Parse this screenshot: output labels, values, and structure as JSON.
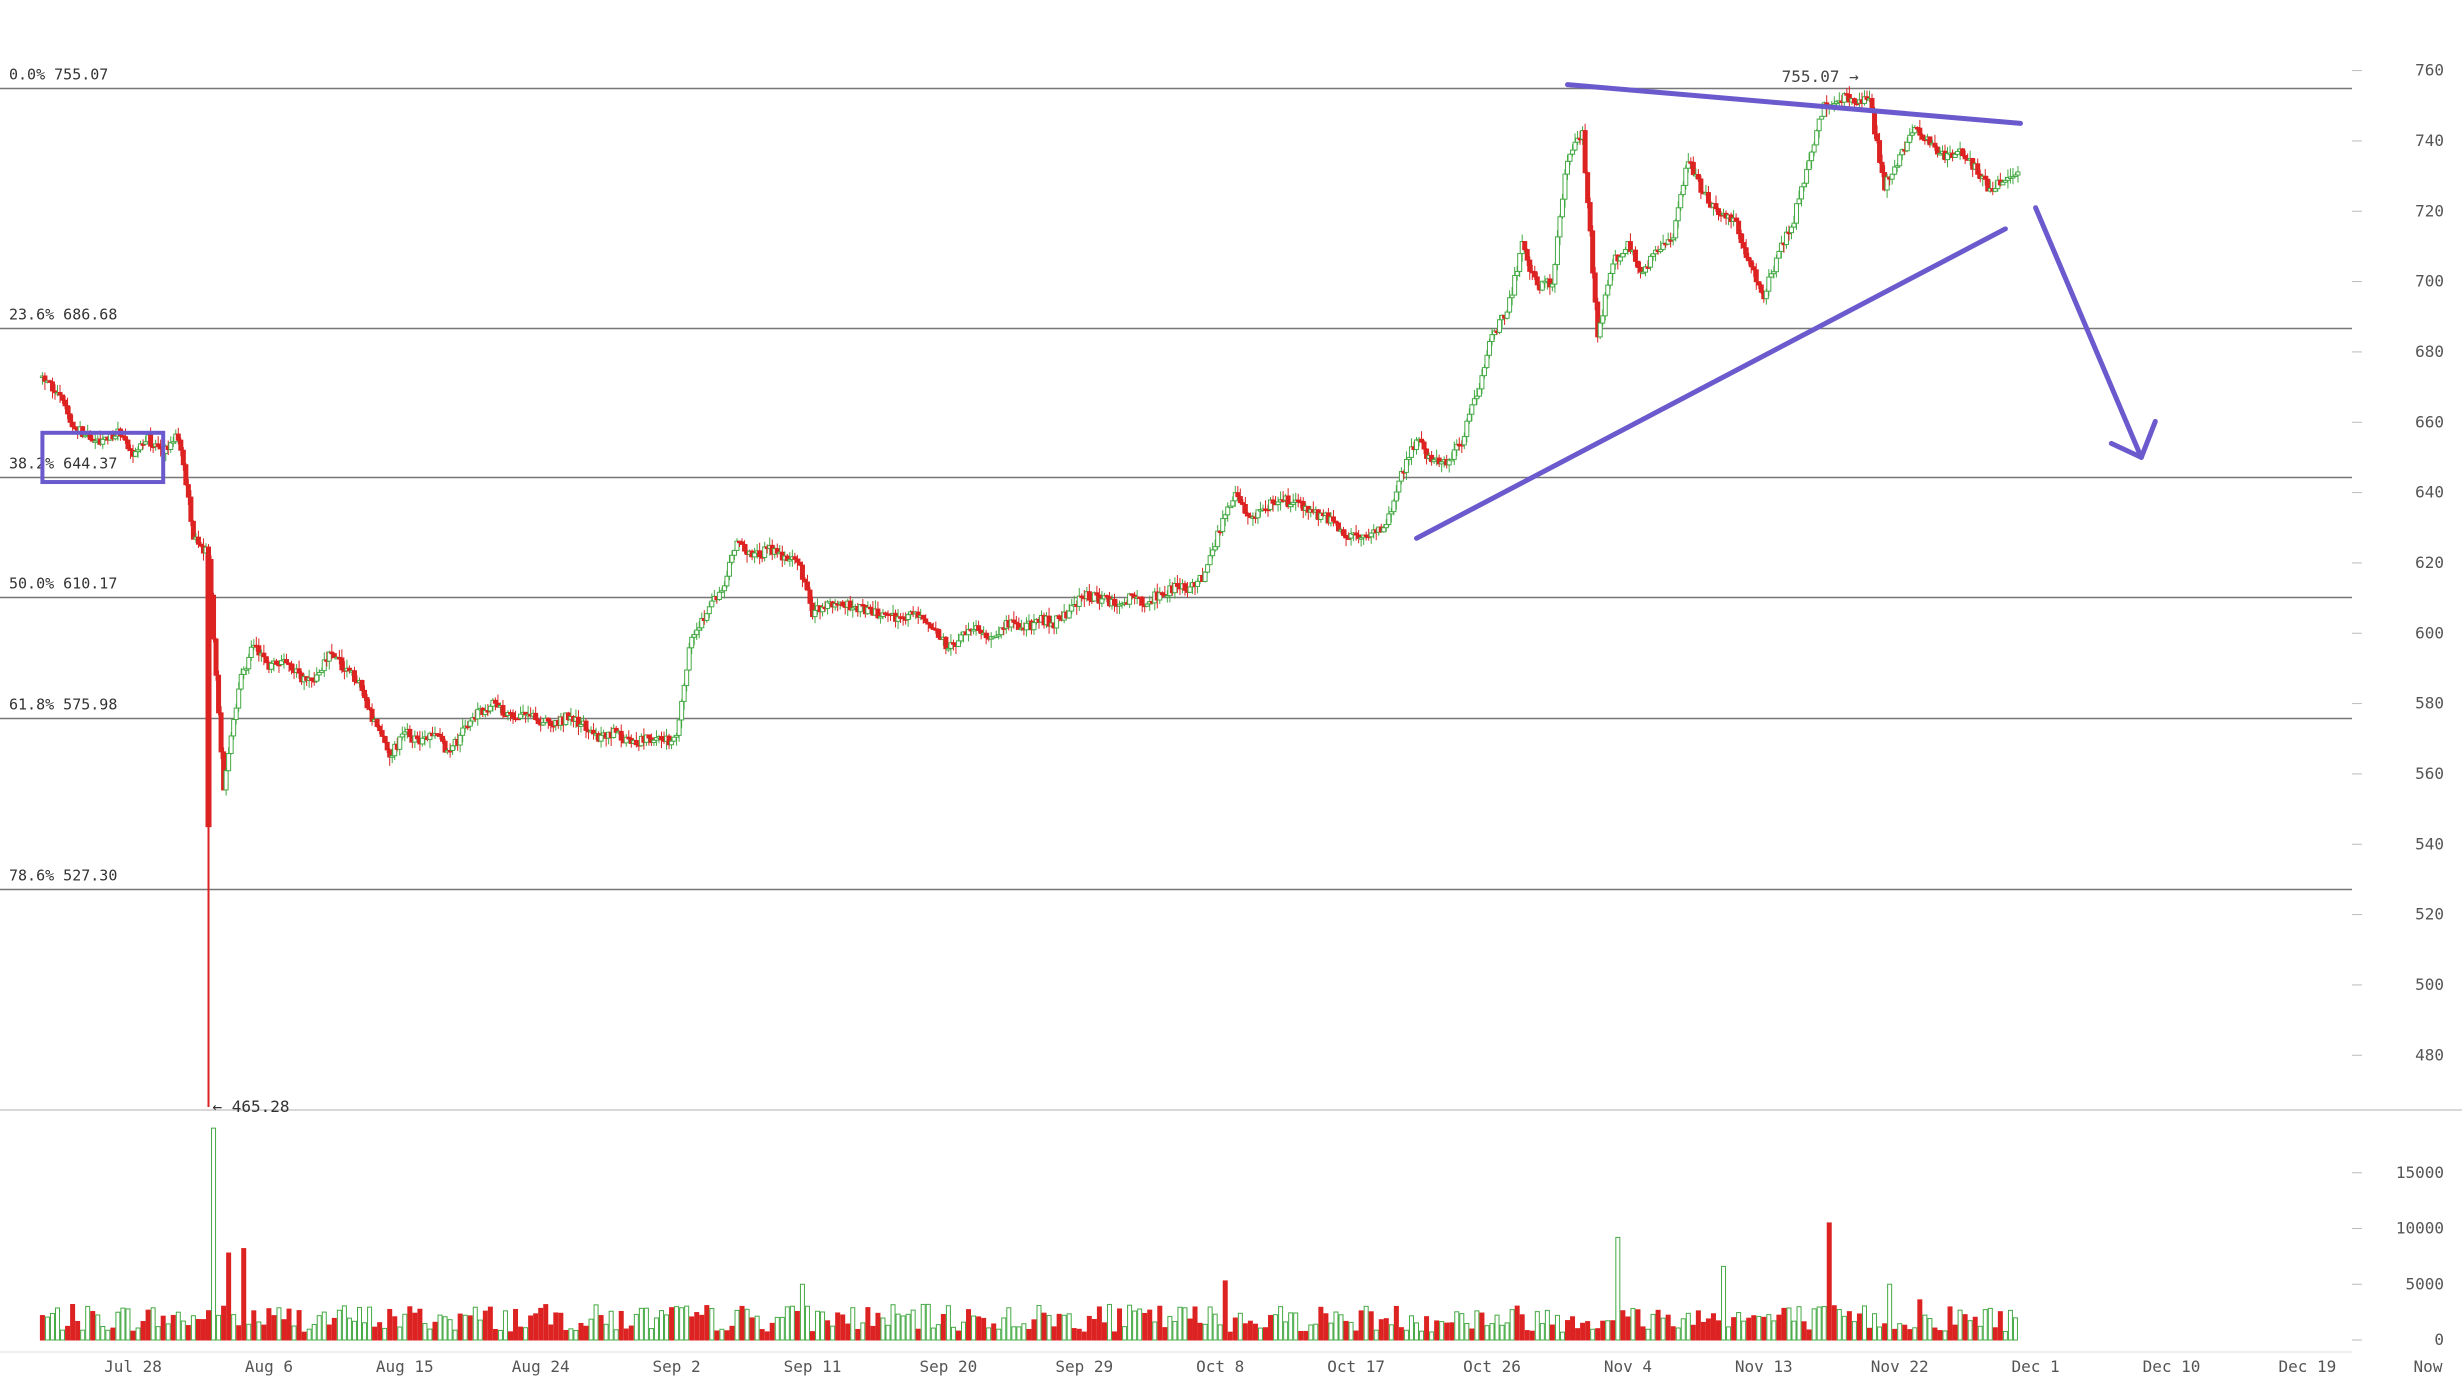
{
  "chart_data": {
    "type": "candlestick",
    "title": "",
    "xlabel": "",
    "ylabel": "",
    "price_axis": {
      "ylim": [
        465,
        765
      ],
      "ticks": [
        760,
        740,
        720,
        700,
        680,
        660,
        640,
        620,
        600,
        580,
        560,
        540,
        520,
        500,
        480
      ]
    },
    "volume_axis": {
      "ylim": [
        0,
        20000
      ],
      "ticks": [
        15000,
        10000,
        5000,
        0
      ]
    },
    "x_axis": {
      "labels": [
        "Jul 28",
        "Aug 6",
        "Aug 15",
        "Aug 24",
        "Sep 2",
        "Sep 11",
        "Sep 20",
        "Sep 29",
        "Oct 8",
        "Oct 17",
        "Oct 26",
        "Nov 4",
        "Nov 13",
        "Nov 22",
        "Dec 1",
        "Dec 10",
        "Dec 19",
        "Now"
      ]
    },
    "fibonacci": [
      {
        "label": "0.0% 755.07",
        "price": 755.07
      },
      {
        "label": "23.6% 686.68",
        "price": 686.68
      },
      {
        "label": "38.2% 644.37",
        "price": 644.37
      },
      {
        "label": "50.0% 610.17",
        "price": 610.17
      },
      {
        "label": "61.8% 575.98",
        "price": 575.98
      },
      {
        "label": "78.6% 527.30",
        "price": 527.3
      }
    ],
    "annotations": {
      "high_label": "755.07 →",
      "low_label": "← 465.28"
    },
    "colors": {
      "up": "#44aa44",
      "down": "#dd2222",
      "drawing": "#6a5acd",
      "grid": "#666666",
      "axis_text": "#555555"
    },
    "drawings": [
      {
        "kind": "resistance-line",
        "from": {
          "x": "Oct 31",
          "y": 756
        },
        "to": {
          "x": "Nov 30",
          "y": 745
        }
      },
      {
        "kind": "support-line",
        "from": {
          "x": "Oct 21",
          "y": 627
        },
        "to": {
          "x": "Nov 29",
          "y": 715
        }
      },
      {
        "kind": "arrow-down",
        "from": {
          "x": "Dec 1",
          "y": 721
        },
        "to": {
          "x": "Dec 8",
          "y": 650
        }
      },
      {
        "kind": "highlight-box",
        "from": {
          "x": "Jul 22",
          "y": 657
        },
        "to": {
          "x": "Jul 30",
          "y": 643
        }
      }
    ],
    "segments": [
      {
        "from": "Jul 22",
        "to": "Jul 23",
        "values": [
          673,
          668
        ]
      },
      {
        "from": "Jul 23",
        "to": "Jul 26",
        "values": [
          668,
          660,
          656,
          654
        ]
      },
      {
        "from": "Jul 26",
        "to": "Jul 31",
        "values": [
          654,
          657,
          651,
          655,
          652,
          656
        ]
      },
      {
        "from": "Jul 31",
        "to": "Aug 2",
        "values": [
          656,
          628,
          622
        ]
      },
      {
        "from": "Aug 2",
        "to": "Aug 3",
        "values": [
          622,
          545,
          555
        ]
      },
      {
        "from": "Aug 3",
        "to": "Aug 9",
        "values": [
          555,
          585,
          597,
          590,
          592,
          588,
          586
        ]
      },
      {
        "from": "Aug 9",
        "to": "Aug 12",
        "values": [
          586,
          595,
          590,
          586
        ]
      },
      {
        "from": "Aug 12",
        "to": "Aug 20",
        "values": [
          586,
          574,
          565,
          572,
          569,
          571,
          566,
          573,
          578
        ]
      },
      {
        "from": "Aug 20",
        "to": "Aug 27",
        "values": [
          578,
          580,
          576,
          578,
          575,
          574,
          577,
          573
        ]
      },
      {
        "from": "Aug 27",
        "to": "Sep 3",
        "values": [
          573,
          570,
          572,
          568,
          571,
          569,
          570,
          600
        ]
      },
      {
        "from": "Sep 3",
        "to": "Sep 10",
        "values": [
          600,
          606,
          612,
          627,
          621,
          624,
          622,
          621
        ]
      },
      {
        "from": "Sep 10",
        "to": "Sep 19",
        "values": [
          621,
          606,
          609,
          608,
          607,
          606,
          605,
          604,
          606,
          602
        ]
      },
      {
        "from": "Sep 19",
        "to": "Sep 24",
        "values": [
          602,
          596,
          599,
          601,
          599,
          603
        ]
      },
      {
        "from": "Sep 24",
        "to": "Oct 4",
        "values": [
          603,
          601,
          604,
          603,
          606,
          611,
          610,
          608,
          610,
          609,
          611
        ]
      },
      {
        "from": "Oct 4",
        "to": "Oct 9",
        "values": [
          611,
          613,
          613,
          616,
          630,
          639
        ]
      },
      {
        "from": "Oct 9",
        "to": "Oct 21",
        "values": [
          639,
          633,
          636,
          638,
          637,
          634,
          633,
          629,
          627,
          628,
          630,
          645,
          655
        ]
      },
      {
        "from": "Oct 21",
        "to": "Oct 28",
        "values": [
          655,
          649,
          648,
          655,
          668,
          685,
          691,
          710
        ]
      },
      {
        "from": "Oct 28",
        "to": "Nov 3",
        "values": [
          710,
          698,
          700,
          735,
          742,
          684,
          706
        ]
      },
      {
        "from": "Nov 3",
        "to": "Nov 7",
        "values": [
          706,
          710,
          703,
          710,
          712
        ]
      },
      {
        "from": "Nov 7",
        "to": "Nov 13",
        "values": [
          712,
          735,
          725,
          720,
          718,
          705,
          696
        ]
      },
      {
        "from": "Nov 13",
        "to": "Nov 18",
        "values": [
          696,
          708,
          718,
          735,
          750,
          752
        ]
      },
      {
        "from": "Nov 18",
        "to": "Nov 22",
        "values": [
          752,
          752,
          751,
          727,
          735
        ]
      },
      {
        "from": "Nov 22",
        "to": "Nov 27",
        "values": [
          735,
          745,
          739,
          735,
          737,
          732
        ]
      },
      {
        "from": "Nov 27",
        "to": "Nov 30",
        "values": [
          732,
          726,
          729,
          731
        ]
      }
    ],
    "volume_spikes": [
      {
        "date": "Aug 2",
        "value": 19000
      },
      {
        "date": "Aug 3",
        "value": 7800
      },
      {
        "date": "Aug 4",
        "value": 8200
      },
      {
        "date": "Sep 10",
        "value": 5000
      },
      {
        "date": "Oct 8",
        "value": 5300
      },
      {
        "date": "Nov 3",
        "value": 9200
      },
      {
        "date": "Nov 10",
        "value": 6600
      },
      {
        "date": "Nov 17",
        "value": 10500
      },
      {
        "date": "Nov 21",
        "value": 5000
      },
      {
        "date": "Nov 23",
        "value": 3600
      }
    ],
    "volume_base_range": [
      700,
      3200
    ]
  }
}
